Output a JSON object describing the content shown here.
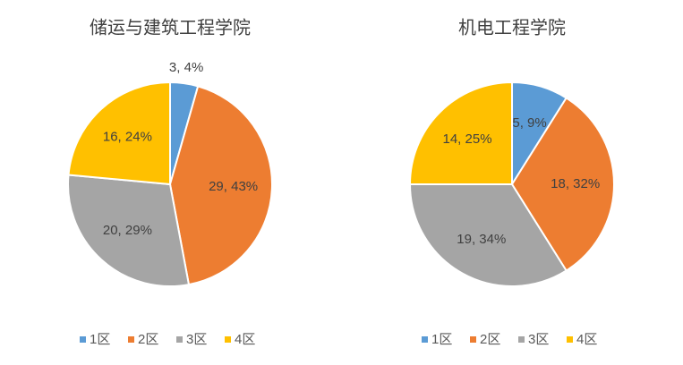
{
  "chart_data": [
    {
      "type": "pie",
      "title": "储运与建筑工程学院",
      "categories": [
        "1区",
        "2区",
        "3区",
        "4区"
      ],
      "values": [
        3,
        29,
        20,
        16
      ],
      "value_labels": [
        "3, 4%",
        "29, 43%",
        "20, 29%",
        "16, 24%"
      ],
      "colors": [
        "#5b9bd5",
        "#ed7d31",
        "#a5a5a5",
        "#ffc000"
      ],
      "legend": "bottom"
    },
    {
      "type": "pie",
      "title": "机电工程学院",
      "categories": [
        "1区",
        "2区",
        "3区",
        "4区"
      ],
      "values": [
        5,
        18,
        19,
        14
      ],
      "value_labels": [
        "5, 9%",
        "18, 32%",
        "19, 34%",
        "14, 25%"
      ],
      "colors": [
        "#5b9bd5",
        "#ed7d31",
        "#a5a5a5",
        "#ffc000"
      ],
      "legend": "bottom"
    }
  ]
}
